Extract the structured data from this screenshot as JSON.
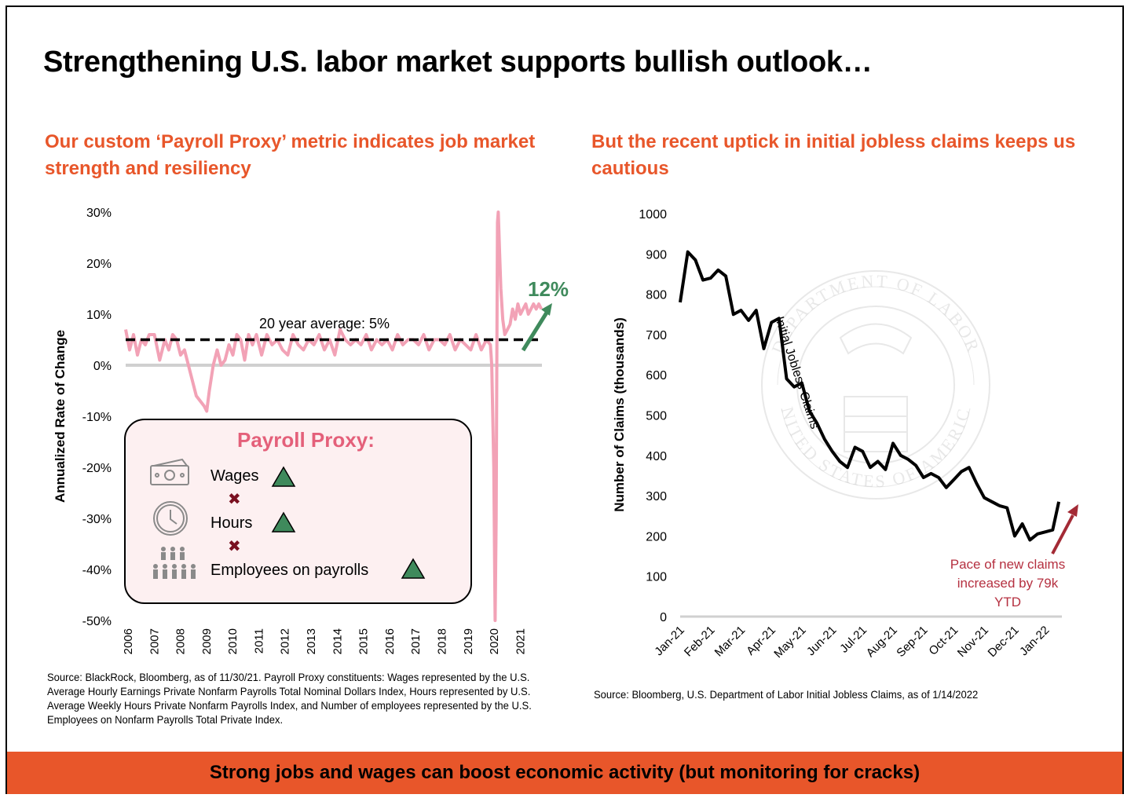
{
  "title": "Strengthening U.S. labor market supports bullish outlook…",
  "left_panel": {
    "subtitle": "Our custom ‘Payroll Proxy’ metric indicates job market strength and resiliency",
    "source": "Source: BlackRock, Bloomberg, as of 11/30/21. Payroll Proxy constituents: Wages represented by the U.S. Average Hourly Earnings Private Nonfarm Payrolls Total Nominal Dollars Index, Hours represented by U.S. Average Weekly Hours Private Nonfarm Payrolls Index, and Number of employees represented by the U.S. Employees on Nonfarm Payrolls Total Private Index.",
    "average_label": "20 year average: 5%",
    "callout_value": "12%",
    "legend": {
      "title": "Payroll Proxy:",
      "items": [
        {
          "label": "Wages",
          "icon": "money-icon",
          "trend": "up"
        },
        {
          "label": "Hours",
          "icon": "clock-icon",
          "trend": "up"
        },
        {
          "label": "Employees on payrolls",
          "icon": "people-icon",
          "trend": "up"
        }
      ],
      "operator": "✖"
    },
    "colors": {
      "line": "#f2a2b6",
      "accent_green": "#3f8a5c",
      "avg_line": "#000000",
      "zero_line": "#d0d0d0"
    }
  },
  "right_panel": {
    "subtitle": "But the recent uptick in initial jobless claims keeps us cautious",
    "source": "Source: Bloomberg, U.S. Department of Labor Initial Jobless Claims, as of 1/14/2022",
    "series_label": "Initial Jobless Claims",
    "annotation": [
      "Pace of new claims",
      "increased by 79k",
      "YTD"
    ],
    "watermark": {
      "top_text": "DEPARTMENT OF LABOR",
      "bottom_text": "UNITED STATES OF AMERICA"
    },
    "colors": {
      "line": "#000000",
      "annotation": "#b53040",
      "arrow": "#a32a35",
      "baseline": "#d0d0d0"
    }
  },
  "banner": "Strong jobs and wages can boost economic activity (but monitoring for cracks)",
  "chart_data": [
    {
      "type": "line",
      "title": "Payroll Proxy",
      "xlabel": "",
      "ylabel": "Annualized Rate of Change",
      "x_ticks": [
        "2006",
        "2007",
        "2008",
        "2009",
        "2010",
        "2011",
        "2012",
        "2013",
        "2014",
        "2015",
        "2016",
        "2017",
        "2018",
        "2019",
        "2020",
        "2021"
      ],
      "y_ticks": [
        "30%",
        "20%",
        "10%",
        "0%",
        "-10%",
        "-20%",
        "-30%",
        "-40%",
        "-50%"
      ],
      "ylim": [
        -50,
        30
      ],
      "xlim": [
        2006,
        2021.92
      ],
      "reference_line": {
        "value": 5,
        "label": "20 year average: 5%"
      },
      "series": [
        {
          "name": "Payroll Proxy",
          "x": [
            2006.0,
            2006.15,
            2006.3,
            2006.45,
            2006.6,
            2006.75,
            2006.9,
            2007.1,
            2007.3,
            2007.5,
            2007.65,
            2007.8,
            2007.95,
            2008.1,
            2008.25,
            2008.4,
            2008.55,
            2008.7,
            2008.85,
            2009.0,
            2009.1,
            2009.2,
            2009.35,
            2009.5,
            2009.65,
            2009.8,
            2009.95,
            2010.1,
            2010.25,
            2010.4,
            2010.55,
            2010.7,
            2010.85,
            2011.0,
            2011.2,
            2011.4,
            2011.6,
            2011.8,
            2012.0,
            2012.2,
            2012.4,
            2012.6,
            2012.8,
            2013.0,
            2013.2,
            2013.4,
            2013.6,
            2013.8,
            2014.0,
            2014.2,
            2014.4,
            2014.6,
            2014.8,
            2015.0,
            2015.2,
            2015.4,
            2015.6,
            2015.8,
            2016.0,
            2016.2,
            2016.4,
            2016.6,
            2016.8,
            2017.0,
            2017.2,
            2017.4,
            2017.6,
            2017.8,
            2018.0,
            2018.2,
            2018.4,
            2018.6,
            2018.8,
            2019.0,
            2019.2,
            2019.4,
            2019.6,
            2019.8,
            2019.95,
            2020.0,
            2020.08,
            2020.13,
            2020.17,
            2020.2,
            2020.22,
            2020.25,
            2020.3,
            2020.35,
            2020.42,
            2020.5,
            2020.6,
            2020.7,
            2020.8,
            2020.9,
            2021.0,
            2021.1,
            2021.2,
            2021.3,
            2021.4,
            2021.5,
            2021.6,
            2021.7,
            2021.8,
            2021.9
          ],
          "values": [
            7,
            3,
            6,
            2,
            5,
            4,
            6,
            6,
            1,
            5,
            3,
            6,
            5,
            2,
            3,
            0,
            -3,
            -6,
            -7,
            -8,
            -9,
            -5,
            0,
            3,
            0,
            1,
            4,
            2,
            6,
            5,
            1,
            6,
            4,
            6,
            2,
            6,
            4,
            5,
            3,
            2,
            6,
            4,
            3,
            5,
            4,
            6,
            3,
            5,
            2,
            7,
            5,
            4,
            5,
            4,
            6,
            3,
            5,
            4,
            5,
            3,
            6,
            4,
            5,
            5,
            4,
            6,
            3,
            5,
            5,
            4,
            6,
            3,
            5,
            4,
            3,
            6,
            3,
            5,
            4,
            0,
            -20,
            -50,
            -30,
            5,
            28,
            30,
            22,
            15,
            9,
            6,
            7,
            8,
            11,
            9,
            12,
            10,
            11,
            12,
            10,
            11,
            12,
            11,
            12,
            11
          ]
        }
      ],
      "callout": "12%"
    },
    {
      "type": "line",
      "title": "Initial Jobless Claims",
      "xlabel": "",
      "ylabel": "Number of Claims (thousands)",
      "x_ticks": [
        "Jan-21",
        "Feb-21",
        "Mar-21",
        "Apr-21",
        "May-21",
        "Jun-21",
        "Jul-21",
        "Aug-21",
        "Sep-21",
        "Oct-21",
        "Nov-21",
        "Dec-21",
        "Jan-22"
      ],
      "y_ticks": [
        "1000",
        "900",
        "800",
        "700",
        "600",
        "500",
        "400",
        "300",
        "200",
        "100",
        "0"
      ],
      "ylim": [
        0,
        1000
      ],
      "xlim": [
        0,
        12.5
      ],
      "series": [
        {
          "name": "Initial Jobless Claims",
          "x": [
            0.0,
            0.25,
            0.5,
            0.75,
            1.0,
            1.25,
            1.5,
            1.75,
            2.0,
            2.25,
            2.5,
            2.75,
            3.0,
            3.25,
            3.5,
            3.75,
            4.0,
            4.25,
            4.5,
            4.75,
            5.0,
            5.25,
            5.5,
            5.75,
            6.0,
            6.25,
            6.5,
            6.75,
            7.0,
            7.25,
            7.5,
            7.75,
            8.0,
            8.25,
            8.5,
            8.75,
            9.0,
            9.25,
            9.5,
            9.75,
            10.0,
            10.25,
            10.5,
            10.75,
            11.0,
            11.25,
            11.5,
            11.75,
            12.0,
            12.25,
            12.45
          ],
          "values": [
            780,
            905,
            885,
            835,
            840,
            860,
            845,
            750,
            760,
            735,
            760,
            665,
            730,
            740,
            590,
            570,
            580,
            510,
            480,
            440,
            410,
            385,
            370,
            420,
            410,
            370,
            385,
            365,
            430,
            400,
            390,
            375,
            345,
            355,
            345,
            320,
            340,
            360,
            370,
            330,
            295,
            285,
            275,
            270,
            200,
            230,
            190,
            205,
            210,
            215,
            285
          ]
        }
      ],
      "annotation": "Pace of new claims increased by 79k YTD"
    }
  ]
}
